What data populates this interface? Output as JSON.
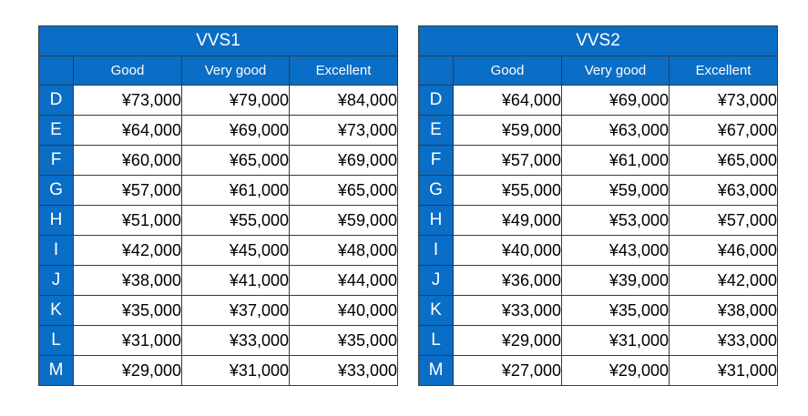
{
  "tables": [
    {
      "title": "VVS1",
      "headers": [
        "",
        "Good",
        "Very good",
        "Excellent"
      ],
      "rows": [
        {
          "grade": "D",
          "good": "¥73,000",
          "very_good": "¥79,000",
          "excellent": "¥84,000"
        },
        {
          "grade": "E",
          "good": "¥64,000",
          "very_good": "¥69,000",
          "excellent": "¥73,000"
        },
        {
          "grade": "F",
          "good": "¥60,000",
          "very_good": "¥65,000",
          "excellent": "¥69,000"
        },
        {
          "grade": "G",
          "good": "¥57,000",
          "very_good": "¥61,000",
          "excellent": "¥65,000"
        },
        {
          "grade": "H",
          "good": "¥51,000",
          "very_good": "¥55,000",
          "excellent": "¥59,000"
        },
        {
          "grade": "I",
          "good": "¥42,000",
          "very_good": "¥45,000",
          "excellent": "¥48,000"
        },
        {
          "grade": "J",
          "good": "¥38,000",
          "very_good": "¥41,000",
          "excellent": "¥44,000"
        },
        {
          "grade": "K",
          "good": "¥35,000",
          "very_good": "¥37,000",
          "excellent": "¥40,000"
        },
        {
          "grade": "L",
          "good": "¥31,000",
          "very_good": "¥33,000",
          "excellent": "¥35,000"
        },
        {
          "grade": "M",
          "good": "¥29,000",
          "very_good": "¥31,000",
          "excellent": "¥33,000"
        }
      ]
    },
    {
      "title": "VVS2",
      "headers": [
        "",
        "Good",
        "Very good",
        "Excellent"
      ],
      "rows": [
        {
          "grade": "D",
          "good": "¥64,000",
          "very_good": "¥69,000",
          "excellent": "¥73,000"
        },
        {
          "grade": "E",
          "good": "¥59,000",
          "very_good": "¥63,000",
          "excellent": "¥67,000"
        },
        {
          "grade": "F",
          "good": "¥57,000",
          "very_good": "¥61,000",
          "excellent": "¥65,000"
        },
        {
          "grade": "G",
          "good": "¥55,000",
          "very_good": "¥59,000",
          "excellent": "¥63,000"
        },
        {
          "grade": "H",
          "good": "¥49,000",
          "very_good": "¥53,000",
          "excellent": "¥57,000"
        },
        {
          "grade": "I",
          "good": "¥40,000",
          "very_good": "¥43,000",
          "excellent": "¥46,000"
        },
        {
          "grade": "J",
          "good": "¥36,000",
          "very_good": "¥39,000",
          "excellent": "¥42,000"
        },
        {
          "grade": "K",
          "good": "¥33,000",
          "very_good": "¥35,000",
          "excellent": "¥38,000"
        },
        {
          "grade": "L",
          "good": "¥29,000",
          "very_good": "¥31,000",
          "excellent": "¥33,000"
        },
        {
          "grade": "M",
          "good": "¥27,000",
          "very_good": "¥29,000",
          "excellent": "¥31,000"
        }
      ]
    }
  ],
  "colors": {
    "header_bg": "#0a6dc6",
    "header_text": "#ffffff",
    "border": "#3a3a3a"
  }
}
